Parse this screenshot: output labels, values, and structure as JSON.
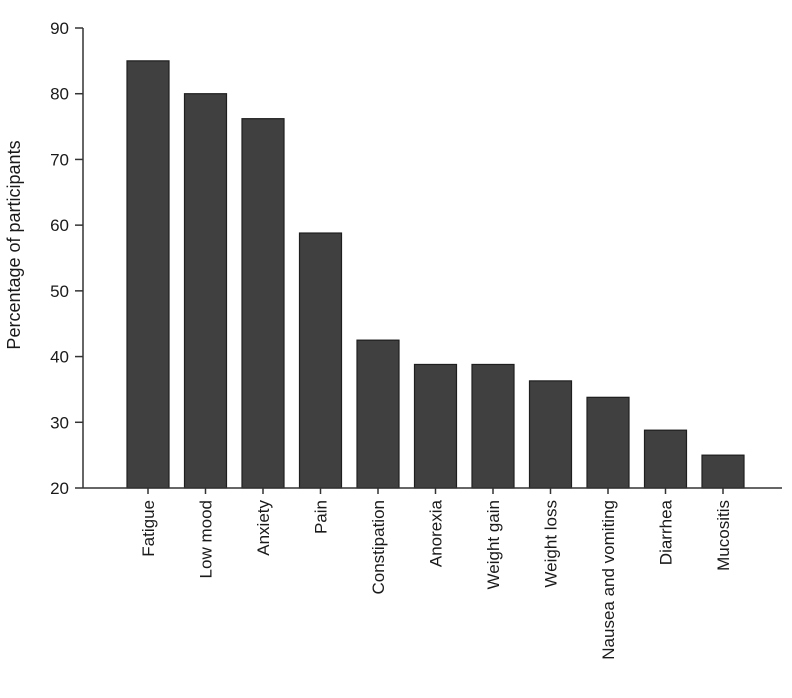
{
  "chart_data": {
    "type": "bar",
    "title": "",
    "xlabel": "",
    "ylabel": "Percentage of participants",
    "ylim": [
      20,
      90
    ],
    "yticks": [
      "20",
      "30",
      "40",
      "50",
      "60",
      "70",
      "80",
      "90"
    ],
    "categories": [
      "Fatigue",
      "Low mood",
      "Anxiety",
      "Pain",
      "Constipation",
      "Anorexia",
      "Weight gain",
      "Weight loss",
      "Nausea and vomiting",
      "Diarrhea",
      "Mucositis"
    ],
    "values": [
      85,
      80,
      76.2,
      58.8,
      42.5,
      38.8,
      38.8,
      36.3,
      33.8,
      28.8,
      25
    ],
    "bar_color": "#404040",
    "grid": false,
    "legend": "none"
  }
}
